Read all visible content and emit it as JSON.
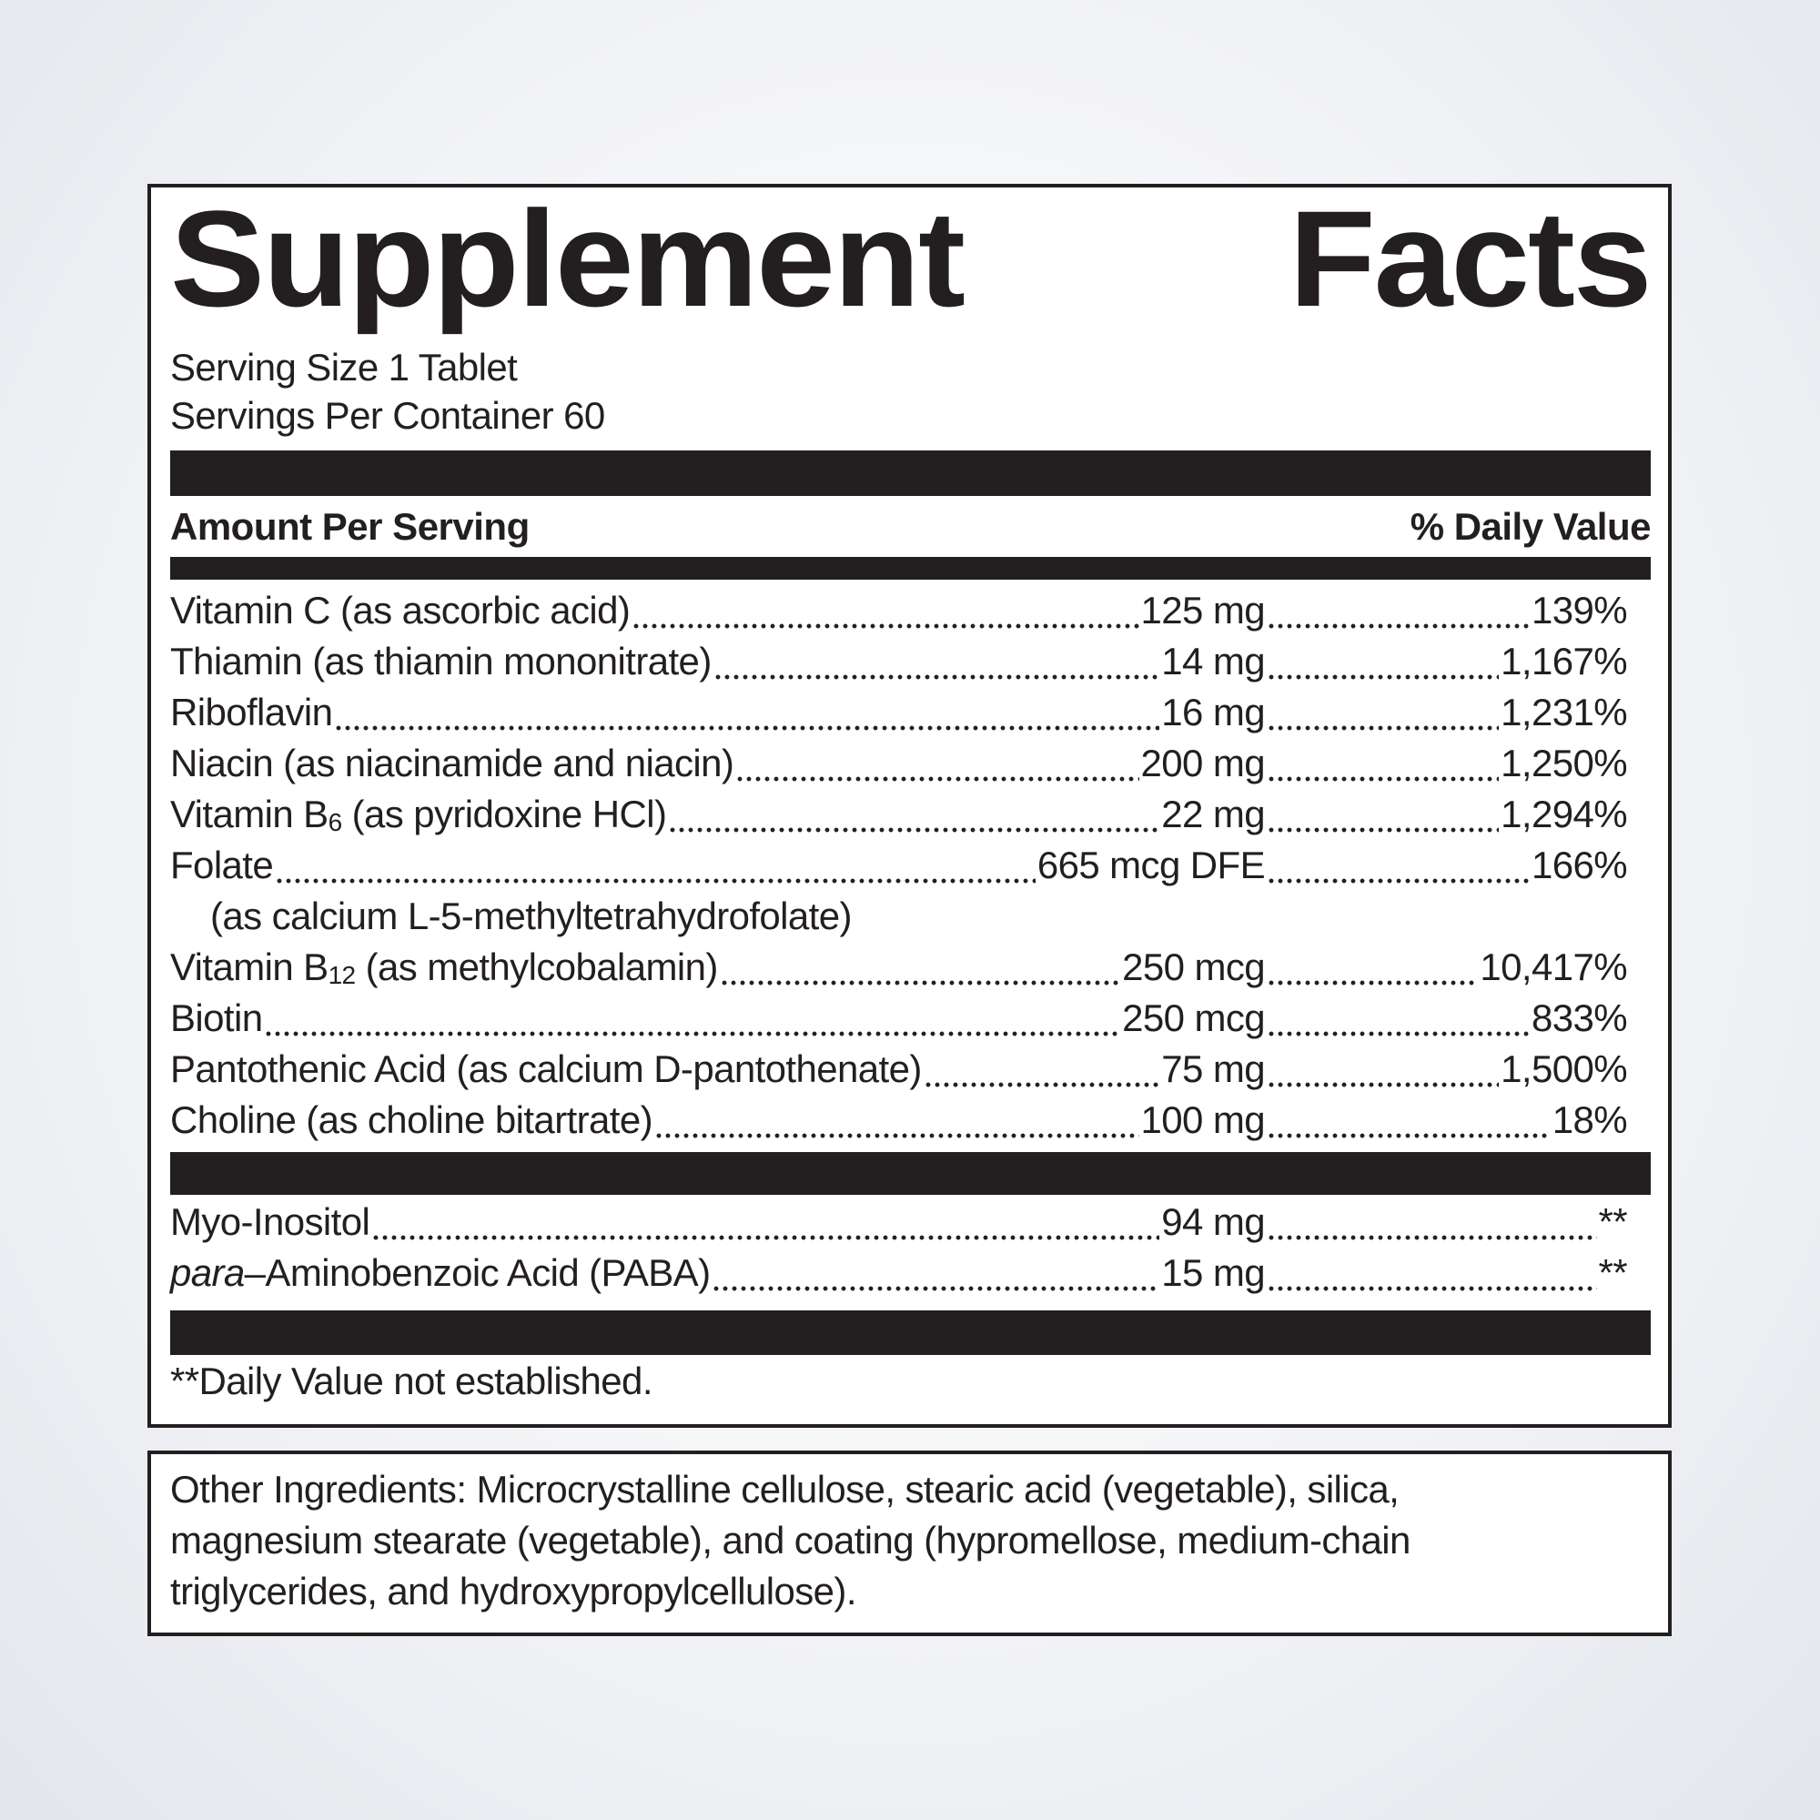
{
  "label": {
    "title_words": [
      "Supplement",
      "Facts"
    ],
    "serving_size": "Serving Size 1 Tablet",
    "servings_per_container": "Servings Per Container 60",
    "header_left": "Amount Per Serving",
    "header_right": "% Daily Value",
    "nutrients": [
      {
        "name": [
          {
            "text": "Vitamin C (as ascorbic acid)"
          }
        ],
        "amount": "125 mg",
        "dv": "139%"
      },
      {
        "name": [
          {
            "text": "Thiamin (as thiamin mononitrate) "
          }
        ],
        "amount": "14 mg",
        "dv": "1,167%"
      },
      {
        "name": [
          {
            "text": "Riboflavin"
          }
        ],
        "amount": "16 mg",
        "dv": "1,231%"
      },
      {
        "name": [
          {
            "text": "Niacin (as niacinamide and niacin)"
          }
        ],
        "amount": "200 mg",
        "dv": "1,250%"
      },
      {
        "name": [
          {
            "text": "Vitamin B"
          },
          {
            "sub": "6"
          },
          {
            "text": " (as pyridoxine HCl)"
          }
        ],
        "amount": "22 mg",
        "dv": "1,294%"
      },
      {
        "name": [
          {
            "text": "Folate "
          }
        ],
        "amount": "665 mcg DFE",
        "dv": "166%",
        "note": "(as calcium L-5-methyltetrahydrofolate)"
      },
      {
        "name": [
          {
            "text": "Vitamin B"
          },
          {
            "sub": "12"
          },
          {
            "text": " (as methylcobalamin)"
          }
        ],
        "amount": "250 mcg",
        "dv": "10,417%"
      },
      {
        "name": [
          {
            "text": "Biotin"
          }
        ],
        "amount": "250 mcg",
        "dv": "833%"
      },
      {
        "name": [
          {
            "text": "Pantothenic Acid (as calcium D-pantothenate)"
          }
        ],
        "amount": "75 mg",
        "dv": "1,500%"
      },
      {
        "name": [
          {
            "text": "Choline (as choline bitartrate) "
          }
        ],
        "amount": "100 mg",
        "dv": "18%"
      }
    ],
    "others": [
      {
        "name": [
          {
            "text": "Myo-Inositol"
          }
        ],
        "amount": "94 mg",
        "dv": "**"
      },
      {
        "name": [
          {
            "italic": "para"
          },
          {
            "text": "–Aminobenzoic Acid (PABA)"
          }
        ],
        "amount": "15 mg",
        "dv": "**"
      }
    ],
    "footnote": "**Daily Value not established."
  },
  "other_ingredients": {
    "lines": [
      "Other Ingredients: Microcrystalline cellulose, stearic acid (vegetable), silica,",
      "magnesium stearate (vegetable), and coating (hypromellose, medium-chain",
      "triglycerides, and hydroxypropylcellulose)."
    ]
  }
}
